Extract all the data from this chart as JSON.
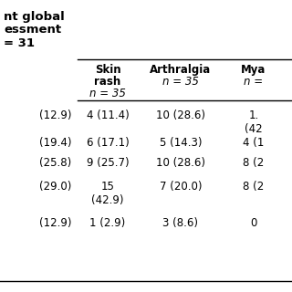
{
  "title_lines": [
    "nt global",
    "essment",
    "= 31"
  ],
  "title_bold": [
    true,
    true,
    true
  ],
  "col_headers": [
    [
      "Skin",
      "rash",
      "n = 35"
    ],
    [
      "Arthralgia",
      "n = 35",
      ""
    ],
    [
      "Mya",
      "n =",
      ""
    ]
  ],
  "col_header_bold": [
    [
      true,
      true,
      false
    ],
    [
      true,
      false,
      false
    ],
    [
      true,
      false,
      false
    ]
  ],
  "col_header_italic": [
    [
      false,
      false,
      true
    ],
    [
      false,
      true,
      false
    ],
    [
      false,
      true,
      false
    ]
  ],
  "rows": [
    [
      "(12.9)",
      "4 (11.4)",
      "10 (28.6)",
      "1.\n(42"
    ],
    [
      "(19.4)",
      "6 (17.1)",
      "5 (14.3)",
      "4 (1"
    ],
    [
      "(25.8)",
      "9 (25.7)",
      "10 (28.6)",
      "8 (2"
    ],
    [
      "(29.0)",
      "15\n(42.9)",
      "7 (20.0)",
      "8 (2"
    ],
    [
      "(12.9)",
      "1 (2.9)",
      "3 (8.6)",
      "0"
    ]
  ],
  "bg_color": "#ffffff",
  "text_color": "#000000",
  "line_color": "#000000",
  "title_fontsize": 9.5,
  "header_fontsize": 8.5,
  "data_fontsize": 8.5
}
